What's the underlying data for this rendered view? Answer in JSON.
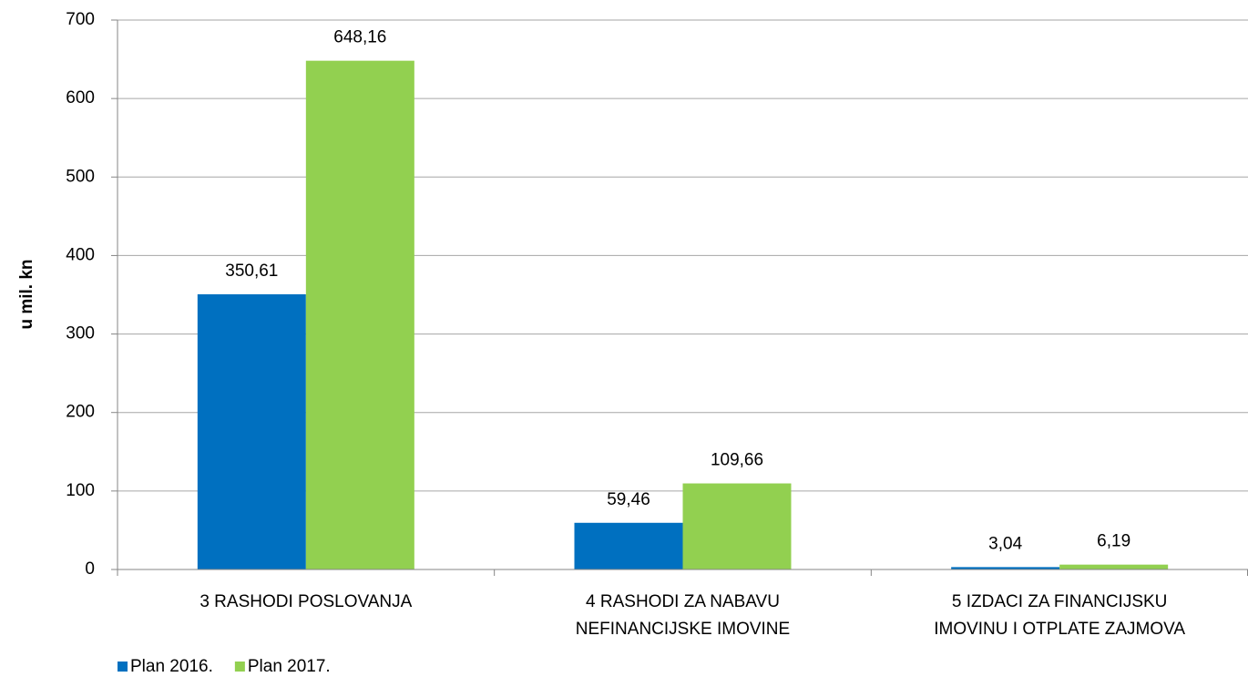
{
  "chart_data": {
    "type": "bar",
    "y_label": "u mil. kn",
    "categories": [
      [
        "3 RASHODI POSLOVANJA"
      ],
      [
        "4 RASHODI ZA NABAVU",
        "NEFINANCIJSKE IMOVINE"
      ],
      [
        "5 IZDACI ZA FINANCIJSKU",
        "IMOVINU I OTPLATE ZAJMOVA"
      ]
    ],
    "series": [
      {
        "name": "Plan 2016.",
        "color": "#0070c0",
        "values": [
          350.61,
          59.46,
          3.04
        ],
        "value_labels": [
          "350,61",
          "59,46",
          "3,04"
        ]
      },
      {
        "name": "Plan 2017.",
        "color": "#92d050",
        "values": [
          648.16,
          109.66,
          6.19
        ],
        "value_labels": [
          "648,16",
          "109,66",
          "6,19"
        ]
      }
    ],
    "ylim": [
      0,
      700
    ],
    "yticks": [
      0,
      100,
      200,
      300,
      400,
      500,
      600,
      700
    ],
    "grid": true,
    "legend": "bottom-left"
  }
}
